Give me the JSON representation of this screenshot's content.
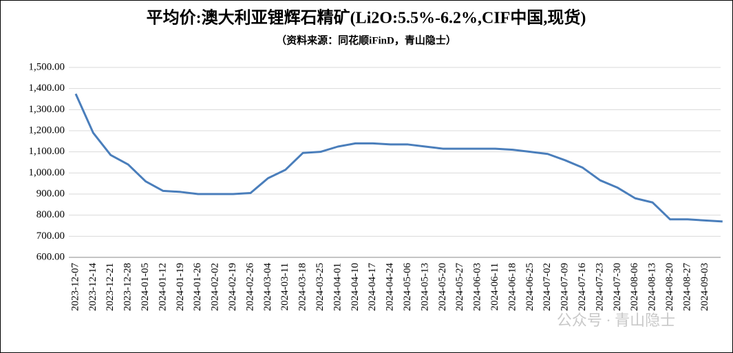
{
  "chart_data": {
    "type": "line",
    "title": "平均价:澳大利亚锂辉石精矿(Li2O:5.5%-6.2%,CIF中国,现货)",
    "subtitle": "（资料来源：同花顺iFinD，青山隐士）",
    "watermark": "公众号 · 青山隐士",
    "categories": [
      "2023-12-07",
      "2023-12-14",
      "2023-12-21",
      "2023-12-28",
      "2024-01-05",
      "2024-01-12",
      "2024-01-19",
      "2024-01-26",
      "2024-02-02",
      "2024-02-19",
      "2024-02-26",
      "2024-03-04",
      "2024-03-11",
      "2024-03-18",
      "2024-03-25",
      "2024-04-01",
      "2024-04-10",
      "2024-04-17",
      "2024-04-24",
      "2024-05-06",
      "2024-05-13",
      "2024-05-20",
      "2024-05-27",
      "2024-06-03",
      "2024-06-11",
      "2024-06-18",
      "2024-06-25",
      "2024-07-02",
      "2024-07-09",
      "2024-07-16",
      "2024-07-23",
      "2024-07-30",
      "2024-08-06",
      "2024-08-13",
      "2024-08-20",
      "2024-08-27",
      "2024-09-03",
      null
    ],
    "series": [
      {
        "color": "#4a7ebb",
        "values": [
          1375,
          1190,
          1085,
          1040,
          960,
          915,
          910,
          900,
          900,
          900,
          905,
          975,
          1015,
          1095,
          1100,
          1125,
          1140,
          1140,
          1135,
          1135,
          1125,
          1115,
          1115,
          1115,
          1115,
          1110,
          1100,
          1090,
          1060,
          1025,
          965,
          930,
          880,
          860,
          780,
          780,
          775,
          770
        ]
      }
    ],
    "ylim": [
      600,
      1500
    ],
    "yticks": [
      {
        "value": 600,
        "label": "600.00"
      },
      {
        "value": 700,
        "label": "700.00"
      },
      {
        "value": 800,
        "label": "800.00"
      },
      {
        "value": 900,
        "label": "900.00"
      },
      {
        "value": 1000,
        "label": "1,000.00"
      },
      {
        "value": 1100,
        "label": "1,100.00"
      },
      {
        "value": 1200,
        "label": "1,200.00"
      },
      {
        "value": 1300,
        "label": "1,300.00"
      },
      {
        "value": 1400,
        "label": "1,400.00"
      },
      {
        "value": 1500,
        "label": "1,500.00"
      }
    ],
    "grid": true
  }
}
